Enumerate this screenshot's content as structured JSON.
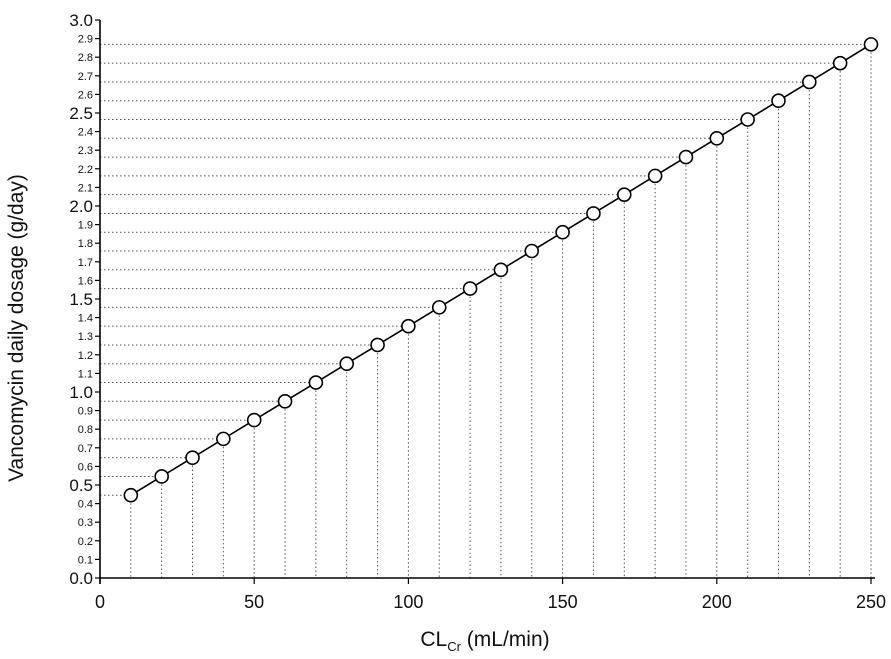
{
  "chart_data": {
    "type": "scatter",
    "title": "",
    "xlabel": "CL",
    "xlabel_sub": "Cr",
    "xlabel_suffix": " (mL/min)",
    "ylabel": "Vancomycin daily dosage (g/day)",
    "xlim": [
      0,
      250
    ],
    "ylim": [
      0,
      3.0
    ],
    "x_ticks": [
      0,
      50,
      100,
      150,
      200,
      250
    ],
    "y_ticks_major": [
      "0.0",
      "0.5",
      "1.0",
      "1.5",
      "2.0",
      "2.5",
      "3.0"
    ],
    "y_ticks_minor": [
      "0.1",
      "0.2",
      "0.3",
      "0.4",
      "0.6",
      "0.7",
      "0.8",
      "0.9",
      "1.1",
      "1.2",
      "1.3",
      "1.4",
      "1.6",
      "1.7",
      "1.8",
      "1.9",
      "2.1",
      "2.2",
      "2.3",
      "2.4",
      "2.6",
      "2.7",
      "2.8",
      "2.9"
    ],
    "grid": "dotted guide lines from each point to both axes",
    "legend": "none",
    "line_color": "#000000",
    "marker": "open-circle",
    "series": [
      {
        "x": [
          10,
          20,
          30,
          40,
          50,
          60,
          70,
          80,
          90,
          100,
          110,
          120,
          130,
          140,
          150,
          160,
          170,
          180,
          190,
          200,
          210,
          220,
          230,
          240,
          250
        ],
        "y": [
          0.445,
          0.546,
          0.647,
          0.748,
          0.849,
          0.95,
          1.051,
          1.152,
          1.253,
          1.354,
          1.455,
          1.556,
          1.657,
          1.758,
          1.859,
          1.96,
          2.061,
          2.162,
          2.263,
          2.364,
          2.465,
          2.566,
          2.667,
          2.768,
          2.869
        ]
      }
    ]
  }
}
